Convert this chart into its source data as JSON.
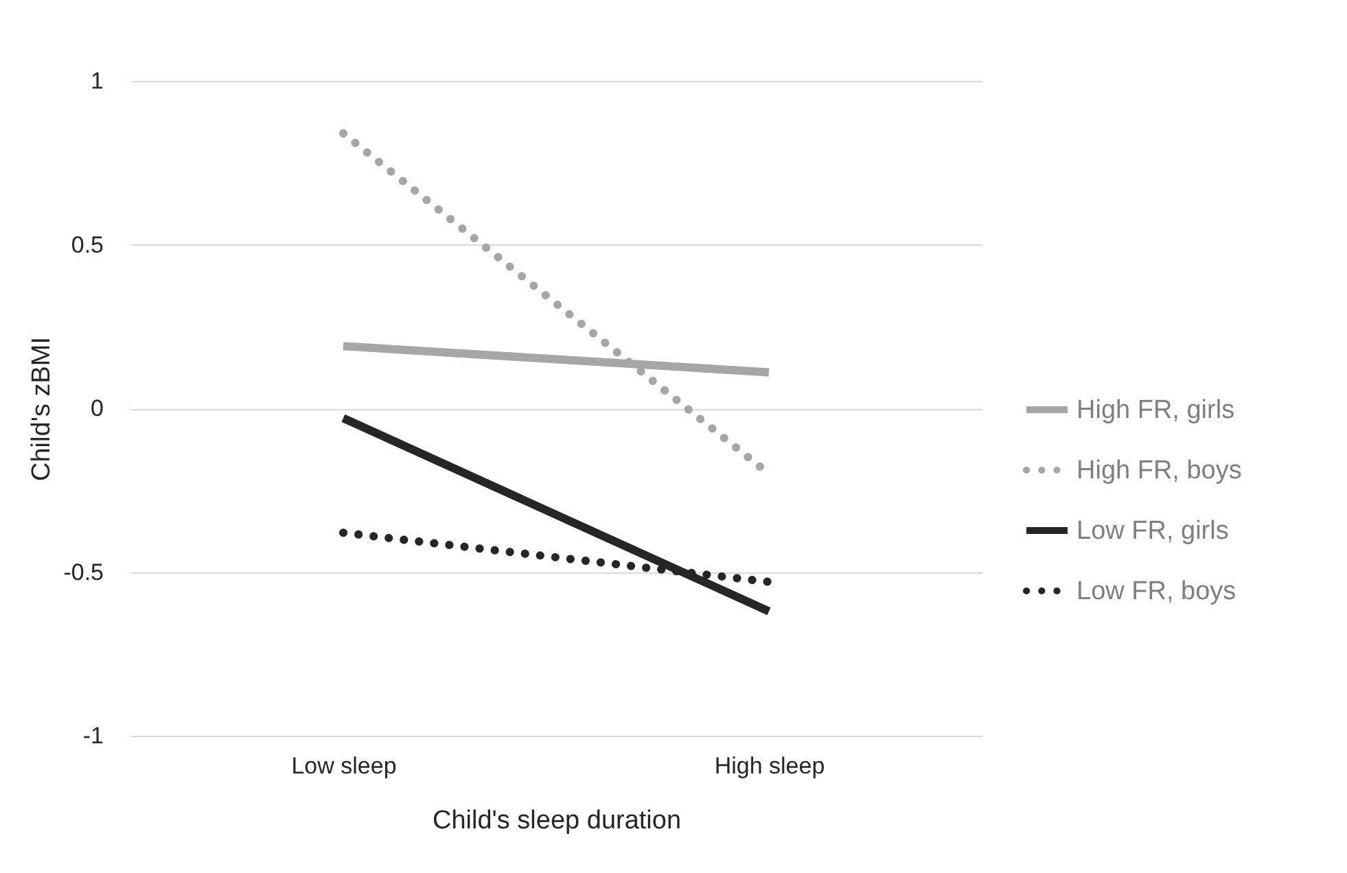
{
  "chart_data": {
    "type": "line",
    "xlabel": "Child's sleep duration",
    "ylabel": "Child's zBMI",
    "categories": [
      "Low sleep",
      "High sleep"
    ],
    "series": [
      {
        "name": "High FR, girls",
        "color": "#a6a6a6",
        "line_style": "solid",
        "values": [
          0.19,
          0.11
        ]
      },
      {
        "name": "High FR, boys",
        "color": "#a6a6a6",
        "line_style": "dotted",
        "values": [
          0.84,
          -0.2
        ]
      },
      {
        "name": "Low FR, girls",
        "color": "#262626",
        "line_style": "solid",
        "values": [
          -0.03,
          -0.62
        ]
      },
      {
        "name": "Low FR, boys",
        "color": "#262626",
        "line_style": "dotted",
        "values": [
          -0.38,
          -0.53
        ]
      }
    ],
    "ylim": [
      -1,
      1
    ],
    "yticks": [
      -1,
      -0.5,
      0,
      0.5,
      1
    ],
    "grid": "y",
    "legend": "right"
  }
}
